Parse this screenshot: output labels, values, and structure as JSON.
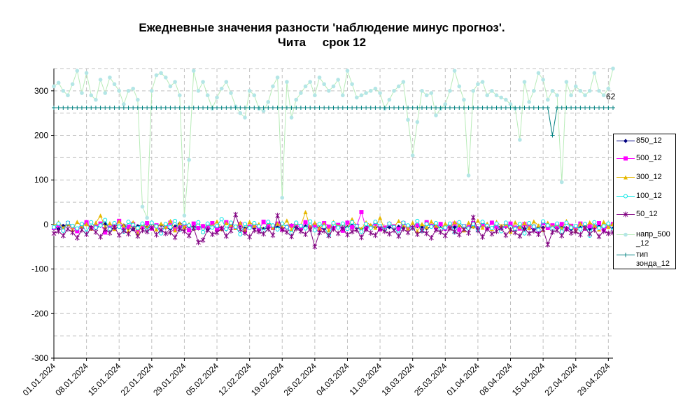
{
  "title_line1": "Ежедневные значения разности 'наблюдение минус прогноз'.",
  "title_line2": "Чита     срок 12",
  "chart_data": {
    "type": "line",
    "ylim": [
      -300,
      350
    ],
    "yticks": [
      -300,
      -200,
      -100,
      0,
      100,
      200,
      300
    ],
    "xticks": [
      "01.01.2024",
      "08.01.2024",
      "15.01.2024",
      "22.01.2024",
      "29.01.2024",
      "05.02.2024",
      "12.02.2024",
      "19.02.2024",
      "26.02.2024",
      "04.03.2024",
      "11.03.2024",
      "18.03.2024",
      "25.03.2024",
      "01.04.2024",
      "08.04.2024",
      "15.04.2024",
      "22.04.2024",
      "29.04.2024"
    ],
    "grid": true,
    "legend_position": "right",
    "annotation": "62",
    "days": 121,
    "series": [
      {
        "name": "850_12",
        "color": "#000080",
        "marker": "diamond",
        "values": [
          -5,
          -10,
          -3,
          0,
          -8,
          -12,
          -4,
          2,
          -6,
          -9,
          -3,
          1,
          -7,
          -10,
          -5,
          -2,
          -8,
          -11,
          -4,
          0,
          -6,
          -9,
          -3,
          -1,
          -7,
          -10,
          -5,
          2,
          -8,
          -4,
          -6,
          -9,
          -3,
          -12,
          -7,
          -5,
          -8,
          -11,
          -4,
          -6,
          -2,
          -9,
          -5,
          -7,
          -3,
          -10,
          -8,
          -4,
          -6,
          -9,
          -5,
          -2,
          -7,
          -11,
          -4,
          -6,
          -3,
          -8,
          -10,
          -5,
          -7,
          -4,
          -9,
          -6,
          -2,
          -8,
          -11,
          -5,
          -3,
          -7,
          -4,
          -9,
          -6,
          -10,
          -5,
          -8,
          -3,
          -7,
          -4,
          -6,
          -9,
          -5,
          -2,
          -8,
          -11,
          -4,
          -6,
          -3,
          -7,
          -10,
          -5,
          -8,
          -4,
          -6,
          -9,
          -3,
          -7,
          -5,
          -2,
          -8,
          -4,
          -10,
          -6,
          -12,
          -5,
          -7,
          -3,
          -9,
          -4,
          -6,
          -8,
          -11,
          -5,
          -7,
          -3,
          -10,
          -6,
          -4,
          -8,
          -5,
          -9
        ]
      },
      {
        "name": "500_12",
        "color": "#ff00ff",
        "marker": "square",
        "values": [
          -8,
          -2,
          -12,
          3,
          -6,
          -15,
          -1,
          5,
          -9,
          -4,
          2,
          -18,
          -7,
          -3,
          8,
          -11,
          -5,
          1,
          -14,
          -6,
          3,
          -9,
          -2,
          -16,
          -5,
          4,
          -10,
          -7,
          -1,
          -13,
          2,
          -8,
          -4,
          -6,
          3,
          -12,
          -9,
          5,
          -3,
          -7,
          1,
          -15,
          -5,
          -2,
          -10,
          6,
          -4,
          -8,
          2,
          -11,
          -6,
          -3,
          1,
          -9,
          5,
          -7,
          -2,
          -12,
          3,
          -5,
          -8,
          -1,
          -14,
          4,
          -6,
          -3,
          28,
          -9,
          -5,
          2,
          -11,
          -7,
          1,
          -4,
          -10,
          3,
          -6,
          -8,
          -2,
          -13,
          5,
          -3,
          -7,
          1,
          -9,
          -5,
          2,
          -12,
          -4,
          -6,
          3,
          -10,
          -1,
          -8,
          4,
          -5,
          -11,
          -3,
          2,
          -7,
          -9,
          1,
          -4,
          -6,
          -14,
          3,
          -8,
          -2,
          -5,
          1,
          -10,
          -3,
          -7,
          2,
          -9,
          -4,
          -6,
          3,
          -11,
          -5,
          1
        ]
      },
      {
        "name": "300_12",
        "color": "#e6b800",
        "marker": "triangle",
        "values": [
          -3,
          5,
          -8,
          2,
          -12,
          6,
          -4,
          1,
          -9,
          4,
          20,
          -6,
          3,
          -10,
          7,
          -2,
          -15,
          5,
          -20,
          1,
          -7,
          4,
          -11,
          2,
          -5,
          8,
          -13,
          3,
          -6,
          1,
          -9,
          5,
          -16,
          2,
          -4,
          7,
          -10,
          3,
          -1,
          -8,
          4,
          -12,
          6,
          -3,
          1,
          -14,
          5,
          -7,
          2,
          -5,
          9,
          -11,
          3,
          -2,
          28,
          -6,
          4,
          -9,
          1,
          -13,
          6,
          -4,
          2,
          -8,
          12,
          -3,
          -10,
          5,
          -1,
          -7,
          15,
          -12,
          3,
          -5,
          8,
          -2,
          -9,
          4,
          -15,
          1,
          -6,
          7,
          -3,
          -11,
          2,
          -8,
          5,
          -1,
          -13,
          4,
          -4,
          9,
          -7,
          2,
          -10,
          6,
          -3,
          1,
          -16,
          5,
          -5,
          3,
          -8,
          7,
          -2,
          -12,
          4,
          -6,
          1,
          -9,
          8,
          -4,
          -14,
          2,
          -7,
          5,
          -3,
          -11,
          6,
          -5,
          1
        ]
      },
      {
        "name": "100_12",
        "color": "#00e5e5",
        "marker": "circle",
        "values": [
          -6,
          2,
          -14,
          4,
          -3,
          -9,
          1,
          -18,
          5,
          -7,
          -2,
          10,
          -11,
          3,
          -5,
          -16,
          6,
          -1,
          -8,
          2,
          -13,
          4,
          -4,
          -20,
          1,
          -6,
          8,
          -12,
          3,
          -2,
          -9,
          5,
          -17,
          2,
          -7,
          -3,
          12,
          -10,
          4,
          -5,
          -22,
          1,
          -8,
          3,
          -4,
          -15,
          6,
          -2,
          -11,
          2,
          -6,
          -19,
          4,
          -3,
          -9,
          7,
          -13,
          1,
          -5,
          -24,
          3,
          -7,
          2,
          -10,
          5,
          -4,
          -16,
          1,
          -8,
          6,
          -3,
          -12,
          2,
          -6,
          -21,
          4,
          -2,
          -9,
          8,
          -14,
          1,
          -5,
          3,
          -11,
          -7,
          2,
          -18,
          5,
          -4,
          -9,
          1,
          -13,
          6,
          -3,
          -8,
          2,
          -15,
          4,
          -6,
          -10,
          1,
          -20,
          3,
          -5,
          -12,
          7,
          -2,
          -9,
          2,
          -16,
          4,
          -7,
          -3,
          -11,
          1,
          -25,
          5,
          -8,
          -4,
          2,
          -13,
          6,
          -6
        ]
      },
      {
        "name": "50_12",
        "color": "#800080",
        "marker": "star",
        "values": [
          -20,
          -15,
          -25,
          -10,
          -18,
          -30,
          -12,
          -22,
          -8,
          -17,
          -28,
          -11,
          -19,
          -6,
          -24,
          -14,
          -21,
          -9,
          -26,
          -13,
          -16,
          -7,
          -23,
          -12,
          -20,
          -18,
          -29,
          -10,
          -15,
          -25,
          -8,
          -40,
          -35,
          -12,
          -22,
          -18,
          -9,
          -26,
          -14,
          22,
          -11,
          -19,
          -28,
          -13,
          -16,
          -21,
          -10,
          -24,
          20,
          -12,
          -17,
          -27,
          -9,
          -15,
          -22,
          -11,
          -50,
          -18,
          -14,
          -25,
          -10,
          -20,
          -8,
          -23,
          -16,
          -12,
          -29,
          -11,
          -19,
          -24,
          -9,
          -15,
          -21,
          -13,
          -26,
          -10,
          -18,
          -7,
          -22,
          -14,
          -20,
          -30,
          -12,
          -17,
          -25,
          -9,
          -16,
          -23,
          -11,
          -19,
          16,
          -13,
          -28,
          -10,
          -21,
          -15,
          -8,
          -24,
          -12,
          -18,
          -26,
          -9,
          -20,
          -14,
          -22,
          -11,
          -45,
          -17,
          -13,
          -25,
          -10,
          -19,
          -16,
          -23,
          -8,
          -21,
          -12,
          -27,
          -15,
          -20,
          -18
        ]
      },
      {
        "name": "напр_500_12",
        "color": "#c8f0c8",
        "marker": "dot",
        "values": [
          310,
          318,
          300,
          290,
          315,
          345,
          295,
          340,
          290,
          280,
          325,
          295,
          330,
          315,
          300,
          270,
          300,
          305,
          280,
          40,
          15,
          300,
          335,
          340,
          330,
          310,
          320,
          290,
          20,
          145,
          345,
          300,
          320,
          290,
          260,
          285,
          305,
          320,
          295,
          265,
          250,
          240,
          300,
          290,
          260,
          255,
          275,
          310,
          330,
          60,
          320,
          240,
          280,
          295,
          310,
          320,
          290,
          330,
          315,
          300,
          310,
          325,
          290,
          345,
          315,
          285,
          290,
          295,
          300,
          305,
          295,
          260,
          280,
          300,
          310,
          320,
          235,
          155,
          230,
          300,
          290,
          295,
          245,
          260,
          270,
          300,
          345,
          310,
          280,
          110,
          300,
          315,
          320,
          290,
          300,
          290,
          285,
          280,
          270,
          260,
          190,
          320,
          275,
          300,
          340,
          325,
          280,
          300,
          290,
          95,
          320,
          290,
          310,
          300,
          290,
          300,
          340,
          300,
          290,
          305,
          350
        ]
      },
      {
        "name": "тип зонда_12",
        "color": "#008080",
        "marker": "plus",
        "values": [
          262,
          262,
          262,
          262,
          262,
          262,
          262,
          262,
          262,
          262,
          262,
          262,
          262,
          262,
          262,
          262,
          262,
          262,
          262,
          262,
          262,
          262,
          262,
          262,
          262,
          262,
          262,
          262,
          262,
          262,
          262,
          262,
          262,
          262,
          262,
          262,
          262,
          262,
          262,
          262,
          262,
          262,
          262,
          262,
          262,
          262,
          262,
          262,
          262,
          262,
          262,
          262,
          262,
          262,
          262,
          262,
          262,
          262,
          262,
          262,
          262,
          262,
          262,
          262,
          262,
          262,
          262,
          262,
          262,
          262,
          262,
          262,
          262,
          262,
          262,
          262,
          262,
          262,
          262,
          262,
          262,
          262,
          262,
          262,
          262,
          262,
          262,
          262,
          262,
          262,
          262,
          262,
          262,
          262,
          262,
          262,
          262,
          262,
          262,
          262,
          262,
          262,
          262,
          262,
          262,
          262,
          262,
          200,
          262,
          262,
          262,
          262,
          262,
          262,
          262,
          262,
          262,
          262,
          262,
          262,
          262
        ]
      }
    ]
  },
  "legend": [
    {
      "label": "850_12",
      "color": "#000080",
      "marker": "diamond"
    },
    {
      "label": "500_12",
      "color": "#ff00ff",
      "marker": "square"
    },
    {
      "label": "300_12",
      "color": "#e6b800",
      "marker": "triangle"
    },
    {
      "label": "100_12",
      "color": "#00e5e5",
      "marker": "circle"
    },
    {
      "label": "50_12",
      "color": "#800080",
      "marker": "star"
    },
    {
      "label": "напр_500 _12",
      "color": "#c8f0c8",
      "marker": "dot"
    },
    {
      "label": "тип зонда_12",
      "color": "#008080",
      "marker": "plus"
    }
  ]
}
